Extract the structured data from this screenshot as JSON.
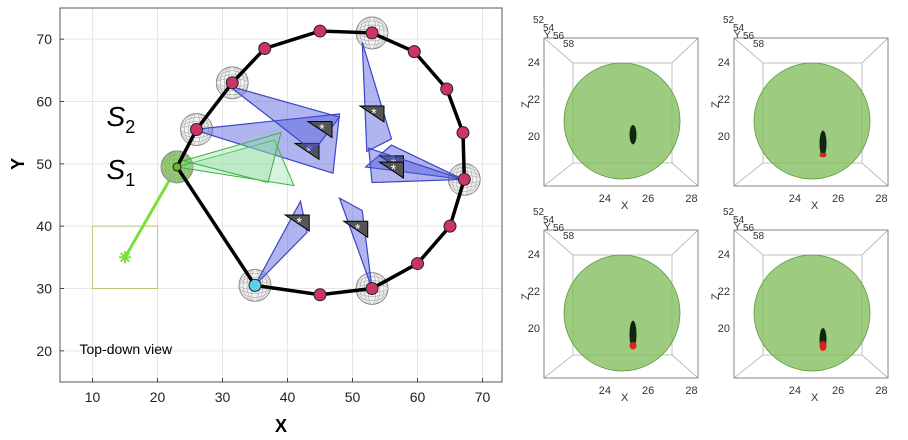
{
  "chart_data": [
    {
      "type": "scatter",
      "title": "",
      "xlabel": "X",
      "ylabel": "Y",
      "xlim": [
        5,
        73
      ],
      "ylim": [
        15,
        75
      ],
      "xticks": [
        10,
        20,
        30,
        40,
        50,
        60,
        70
      ],
      "yticks": [
        20,
        30,
        40,
        50,
        60,
        70
      ],
      "grid": true,
      "annotation": "Top-down view",
      "labels": [
        {
          "text": "S",
          "sub": "1",
          "x": 18,
          "y": 49
        },
        {
          "text": "S",
          "sub": "2",
          "x": 18,
          "y": 57.5
        }
      ],
      "target_box": {
        "x": [
          10,
          20
        ],
        "y": [
          30,
          40
        ]
      },
      "target_point": {
        "x": 15,
        "y": 35
      },
      "guide_line": [
        [
          15,
          35
        ],
        [
          23,
          49.5
        ]
      ],
      "ring_nodes": [
        [
          23,
          49.5
        ],
        [
          26,
          55.5
        ],
        [
          31.5,
          63
        ],
        [
          36.5,
          68.5
        ],
        [
          45,
          71.3
        ],
        [
          53,
          71
        ],
        [
          59.5,
          68
        ],
        [
          64.5,
          62
        ],
        [
          67,
          55
        ],
        [
          67.2,
          47.5
        ],
        [
          65,
          40
        ],
        [
          60,
          34
        ],
        [
          53,
          30
        ],
        [
          45,
          29
        ],
        [
          35,
          30.5
        ]
      ],
      "ring_colors": {
        "line": "#000000",
        "node": "#cc3366",
        "start_node": "#5ed0e8",
        "anchor": "#66bb33"
      },
      "spheres": [
        [
          23,
          49.5
        ],
        [
          26,
          55.5
        ],
        [
          31.5,
          63
        ],
        [
          53,
          71
        ],
        [
          67.2,
          47.5
        ],
        [
          53,
          30
        ],
        [
          35,
          30.5
        ]
      ],
      "triangles": [
        {
          "p": [
            [
              25.5,
              55.5
            ],
            [
              48,
              58
            ],
            [
              47,
              48.5
            ]
          ],
          "star": [
            43,
            52
          ]
        },
        {
          "p": [
            [
              31,
              62.5
            ],
            [
              48,
              57.5
            ],
            [
              44,
              52
            ]
          ],
          "star": [
            45,
            55.5
          ]
        },
        {
          "p": [
            [
              51.5,
              69.5
            ],
            [
              52.2,
              52
            ],
            [
              56,
              54
            ]
          ],
          "star": [
            53,
            58
          ]
        },
        {
          "p": [
            [
              67,
              47.5
            ],
            [
              52,
              49.5
            ],
            [
              56,
              53
            ]
          ],
          "star": [
            56,
            50
          ]
        },
        {
          "p": [
            [
              67,
              47.5
            ],
            [
              52.5,
              52.5
            ],
            [
              53,
              47
            ]
          ],
          "star": [
            56,
            49
          ]
        },
        {
          "p": [
            [
              35,
              30.5
            ],
            [
              42,
              44
            ],
            [
              43,
              39
            ]
          ],
          "star": [
            41.5,
            40.5
          ]
        },
        {
          "p": [
            [
              53,
              30
            ],
            [
              48,
              44.5
            ],
            [
              51.5,
              42.5
            ]
          ],
          "star": [
            50.5,
            39.5
          ]
        }
      ],
      "green_triangles": [
        {
          "p": [
            [
              23,
              49.5
            ],
            [
              38,
              53.8
            ],
            [
              41,
              46.5
            ]
          ]
        },
        {
          "p": [
            [
              24,
              50.5
            ],
            [
              39,
              55
            ],
            [
              37,
              47
            ]
          ]
        }
      ]
    },
    {
      "type": "scatter",
      "xlabel": "X",
      "ylabel": "Z",
      "xticks": [
        24,
        26,
        28
      ],
      "zticks": [
        20,
        22,
        24
      ],
      "depth_ticks": [
        52,
        54,
        56,
        58
      ],
      "xlim": [
        22.3,
        28.3
      ],
      "ylim": [
        17.3,
        25.3
      ],
      "sphere_color": "#7cbb55",
      "cluster": {
        "x": 25.3,
        "z_top": 20.6,
        "z_bottom": 19.55,
        "color": "#102610"
      },
      "contact_red": null
    },
    {
      "type": "scatter",
      "xlabel": "X",
      "ylabel": "Z",
      "xticks": [
        24,
        26,
        28
      ],
      "zticks": [
        20,
        22,
        24
      ],
      "depth_ticks": [
        52,
        54,
        56,
        58
      ],
      "xlim": [
        22.3,
        28.3
      ],
      "ylim": [
        17.3,
        25.3
      ],
      "sphere_color": "#7cbb55",
      "cluster": {
        "x": 25.3,
        "z_top": 20.3,
        "z_bottom": 18.9,
        "color": "#102610"
      },
      "contact_red": {
        "z_top": 19.1,
        "z_bottom": 18.85,
        "color": "#dd1f1f"
      }
    },
    {
      "type": "scatter",
      "xlabel": "X",
      "ylabel": "Z",
      "xticks": [
        24,
        26,
        28
      ],
      "zticks": [
        20,
        22,
        24
      ],
      "depth_ticks": [
        52,
        54,
        56,
        58
      ],
      "xlim": [
        22.3,
        28.3
      ],
      "ylim": [
        17.3,
        25.3
      ],
      "sphere_color": "#7cbb55",
      "cluster": {
        "x": 25.3,
        "z_top": 20.4,
        "z_bottom": 18.9,
        "color": "#102610"
      },
      "contact_red": {
        "z_top": 19.25,
        "z_bottom": 18.85,
        "color": "#dd1f1f"
      }
    },
    {
      "type": "scatter",
      "xlabel": "X",
      "ylabel": "Z",
      "xticks": [
        24,
        26,
        28
      ],
      "zticks": [
        20,
        22,
        24
      ],
      "depth_ticks": [
        52,
        54,
        56,
        58
      ],
      "xlim": [
        22.3,
        28.3
      ],
      "ylim": [
        17.3,
        25.3
      ],
      "sphere_color": "#7cbb55",
      "cluster": {
        "x": 25.3,
        "z_top": 20.0,
        "z_bottom": 18.8,
        "color": "#102610"
      },
      "contact_red": {
        "z_top": 19.3,
        "z_bottom": 18.75,
        "color": "#dd1f1f"
      }
    }
  ]
}
